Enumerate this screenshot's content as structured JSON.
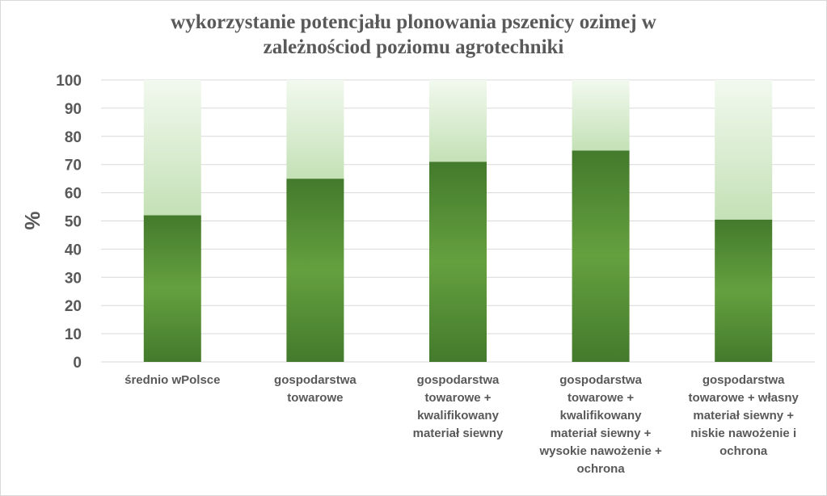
{
  "chart_data": {
    "type": "bar",
    "stacked": true,
    "title_lines": [
      "wykorzystanie  potencjału plonowania  pszenicy ozimej  w",
      "zależnościod  poziomu  agrotechniki"
    ],
    "ylabel": "%",
    "ylim": [
      0,
      100
    ],
    "yticks": [
      0,
      10,
      20,
      30,
      40,
      50,
      60,
      70,
      80,
      90,
      100
    ],
    "grid": true,
    "categories": [
      [
        "średnio wPolsce"
      ],
      [
        "gospodarstwa",
        "towarowe"
      ],
      [
        "gospodarstwa",
        "towarowe +",
        "kwalifikowany",
        "materiał siewny"
      ],
      [
        "gospodarstwa",
        "towarowe +",
        "kwalifikowany",
        "materiał siewny +",
        "wysokie nawożenie +",
        "ochrona"
      ],
      [
        "gospodarstwa",
        "towarowe + własny",
        "materiał siewny +",
        "niskie nawożenie i",
        "ochrona"
      ]
    ],
    "series": [
      {
        "values": [
          52,
          65,
          71,
          75,
          50.5
        ],
        "color": "#5e9a3a"
      },
      {
        "values": [
          48,
          35,
          29,
          25,
          49.5
        ],
        "color": "#c8e4bc"
      }
    ]
  }
}
